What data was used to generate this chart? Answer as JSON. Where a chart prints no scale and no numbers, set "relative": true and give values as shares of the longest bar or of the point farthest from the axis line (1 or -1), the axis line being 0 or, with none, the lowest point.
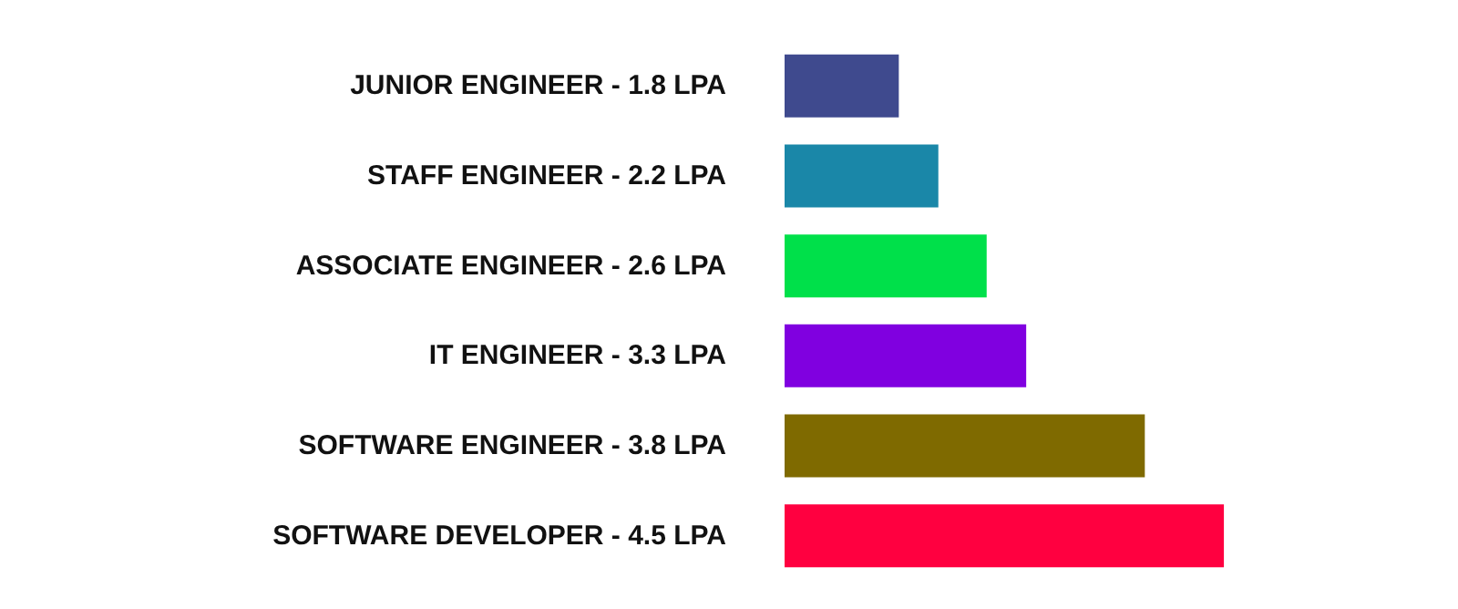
{
  "chart_data": {
    "type": "bar",
    "orientation": "horizontal",
    "relative": true,
    "categories": [
      "JUNIOR ENGINEER - 1.8 LPA",
      "STAFF ENGINEER - 2.2 LPA",
      "ASSOCIATE ENGINEER - 2.6 LPA",
      "IT ENGINEER - 3.3 LPA",
      "SOFTWARE ENGINEER - 3.8 LPA",
      "SOFTWARE DEVELOPER - 4.5 LPA"
    ],
    "values": [
      0.26,
      0.35,
      0.46,
      0.55,
      0.82,
      1.0
    ],
    "colors": [
      "#3f4a8e",
      "#1a87a8",
      "#00e04a",
      "#8000e0",
      "#7f6a00",
      "#ff0040"
    ]
  }
}
